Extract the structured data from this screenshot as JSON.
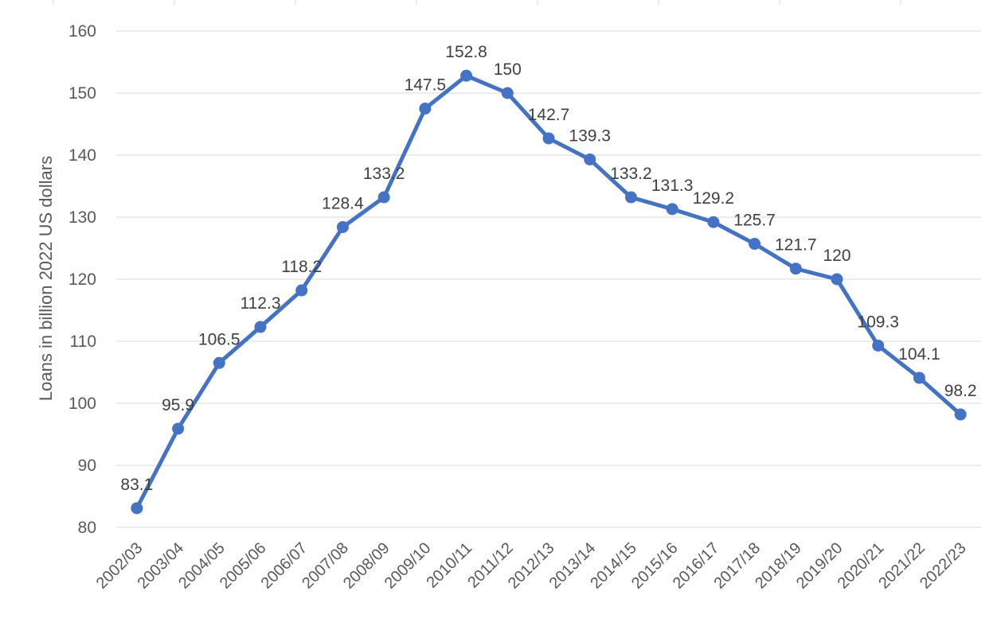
{
  "chart_data": {
    "type": "line",
    "title": "",
    "xlabel": "",
    "ylabel": "Loans in billion 2022 US dollars",
    "ylim": [
      80,
      160
    ],
    "yticks": [
      80,
      90,
      100,
      110,
      120,
      130,
      140,
      150,
      160
    ],
    "grid": true,
    "legend": "none",
    "categories": [
      "2002/03",
      "2003/04",
      "2004/05",
      "2005/06",
      "2006/07",
      "2007/08",
      "2008/09",
      "2009/10",
      "2010/11",
      "2011/12",
      "2012/13",
      "2013/14",
      "2014/15",
      "2015/16",
      "2016/17",
      "2017/18",
      "2018/19",
      "2019/20",
      "2020/21",
      "2021/22",
      "2022/23"
    ],
    "series": [
      {
        "color": "#4472c4",
        "values": [
          83.1,
          95.9,
          106.5,
          112.3,
          118.2,
          128.4,
          133.2,
          147.5,
          152.8,
          150,
          142.7,
          139.3,
          133.2,
          131.3,
          129.2,
          125.7,
          121.7,
          120,
          109.3,
          104.1,
          98.2
        ]
      }
    ]
  }
}
